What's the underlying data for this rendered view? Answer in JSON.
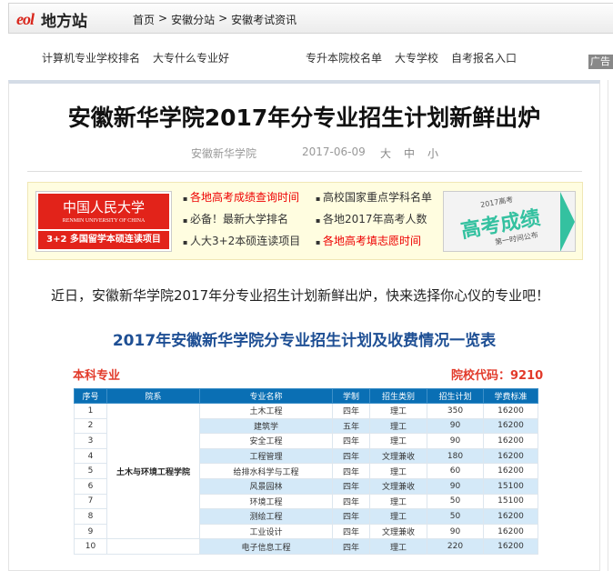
{
  "header": {
    "logo": "eol",
    "site": "地方站",
    "breadcrumb": [
      "首页",
      "安徽分站",
      "安徽考试资讯"
    ],
    "separator": ">"
  },
  "nav": {
    "left": [
      "计算机专业学校排名",
      "大专什么专业好"
    ],
    "right": [
      "专升本院校名单",
      "大专学校",
      "自考报名入口"
    ],
    "ad_label": "广告"
  },
  "article": {
    "title": "安徽新华学院2017年分专业招生计划新鲜出炉",
    "source": "安徽新华学院",
    "date": "2017-06-09",
    "font_sizes": [
      "大",
      "中",
      "小"
    ],
    "intro": "近日，安徽新华学院2017年分专业招生计划新鲜出炉，快来选择你心仪的专业吧！"
  },
  "promo": {
    "renda_title": "中国人民大学",
    "renda_en": "RENMIN UNIVERSITY OF CHINA",
    "renda_banner": "3+2 多国留学本硕连读项目",
    "links": [
      {
        "text": "各地高考成绩查询时间",
        "red": true
      },
      {
        "text": "高校国家重点学科名单",
        "red": false
      },
      {
        "text": "必备！最新大学排名",
        "red": false
      },
      {
        "text": "各地2017年高考人数",
        "red": false
      },
      {
        "text": "人大3+2本硕连读项目",
        "red": false
      },
      {
        "text": "各地高考填志愿时间",
        "red": true
      }
    ],
    "gaokao_year": "2017高考",
    "gaokao_title": "高考成绩",
    "gaokao_sub": "第一时间公布"
  },
  "table": {
    "title": "2017年安徽新华学院分专业招生计划及收费情况一览表",
    "category": "本科专业",
    "code_label": "院校代码：9210",
    "headers": [
      "序号",
      "院系",
      "专业名称",
      "学制",
      "招生类别",
      "招生计划",
      "学费标准"
    ],
    "dept": "土木与环境工程学院",
    "rows": [
      [
        "1",
        "土木工程",
        "四年",
        "理工",
        "350",
        "16200"
      ],
      [
        "2",
        "建筑学",
        "五年",
        "理工",
        "90",
        "16200"
      ],
      [
        "3",
        "安全工程",
        "四年",
        "理工",
        "90",
        "16200"
      ],
      [
        "4",
        "工程管理",
        "四年",
        "文理兼收",
        "180",
        "16200"
      ],
      [
        "5",
        "给排水科学与工程",
        "四年",
        "理工",
        "60",
        "16200"
      ],
      [
        "6",
        "风景园林",
        "四年",
        "文理兼收",
        "90",
        "15100"
      ],
      [
        "7",
        "环境工程",
        "四年",
        "理工",
        "50",
        "15100"
      ],
      [
        "8",
        "测绘工程",
        "四年",
        "理工",
        "50",
        "16200"
      ],
      [
        "9",
        "工业设计",
        "四年",
        "文理兼收",
        "90",
        "16200"
      ],
      [
        "10",
        "电子信息工程",
        "四年",
        "理工",
        "220",
        "16200"
      ]
    ]
  }
}
